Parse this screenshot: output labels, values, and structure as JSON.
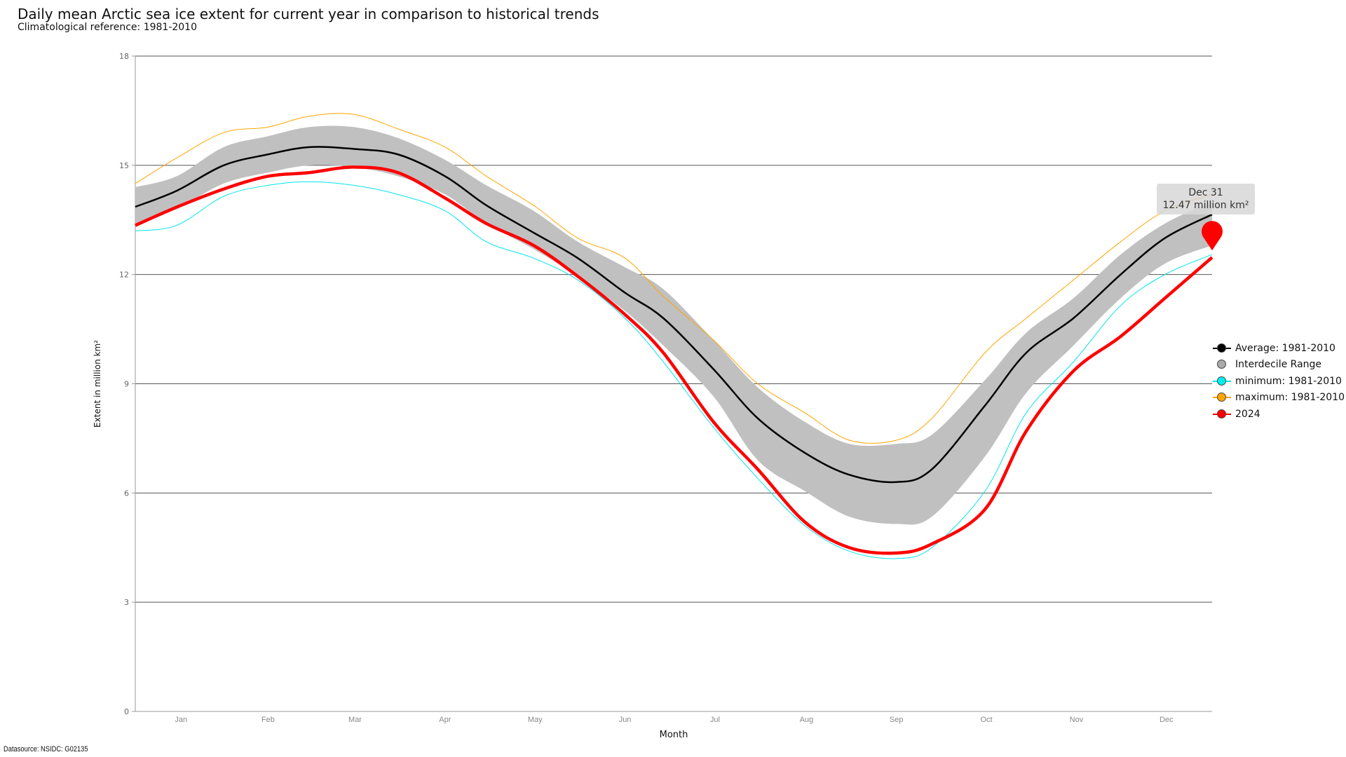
{
  "chart_data": {
    "type": "line",
    "title": "Daily mean Arctic sea ice extent for current year in comparison to historical trends",
    "subtitle": "Climatological reference: 1981-2010",
    "xlabel": "Month",
    "ylabel": "Extent in million km²",
    "xlim": [
      1,
      366
    ],
    "ylim": [
      0,
      18
    ],
    "yticks": [
      0,
      3,
      6,
      9,
      12,
      15,
      18
    ],
    "xtick_labels": [
      "Jan",
      "Feb",
      "Mar",
      "Apr",
      "May",
      "Jun",
      "Jul",
      "Aug",
      "Sep",
      "Oct",
      "Nov",
      "Dec"
    ],
    "grid": "horizontal",
    "legend_position": "right",
    "x_day_of_year": [
      1,
      15,
      31,
      46,
      60,
      75,
      90,
      106,
      120,
      136,
      151,
      167,
      180,
      197,
      212,
      228,
      243,
      259,
      271,
      289,
      303,
      319,
      335,
      350,
      366
    ],
    "series": [
      {
        "name": "Average: 1981-2010",
        "color": "#000000",
        "values": [
          13.86,
          14.3,
          15.0,
          15.3,
          15.5,
          15.45,
          15.3,
          14.7,
          13.9,
          13.15,
          12.45,
          11.5,
          10.8,
          9.4,
          8.05,
          7.1,
          6.5,
          6.3,
          6.65,
          8.4,
          9.85,
          10.8,
          12.0,
          13.0,
          13.65
        ]
      },
      {
        "name": "minimum: 1981-2010",
        "color": "#00e5ee",
        "values": [
          13.2,
          13.35,
          14.15,
          14.45,
          14.55,
          14.45,
          14.2,
          13.75,
          12.9,
          12.45,
          11.85,
          10.8,
          9.6,
          7.8,
          6.4,
          5.1,
          4.4,
          4.2,
          4.5,
          6.05,
          8.2,
          9.6,
          11.15,
          12.0,
          12.55
        ]
      },
      {
        "name": "maximum: 1981-2010",
        "color": "#ffa500",
        "values": [
          14.5,
          15.2,
          15.9,
          16.05,
          16.35,
          16.4,
          16.0,
          15.5,
          14.7,
          13.9,
          13.0,
          12.45,
          11.4,
          10.2,
          9.0,
          8.2,
          7.45,
          7.45,
          8.05,
          9.85,
          10.8,
          11.85,
          12.9,
          13.75,
          14.2
        ]
      },
      {
        "name": "2024",
        "color": "#ff0000",
        "values": [
          13.35,
          13.85,
          14.35,
          14.7,
          14.8,
          14.95,
          14.8,
          14.1,
          13.4,
          12.8,
          11.95,
          10.9,
          9.85,
          7.95,
          6.65,
          5.2,
          4.5,
          4.35,
          4.6,
          5.55,
          7.7,
          9.35,
          10.3,
          11.35,
          12.47
        ]
      }
    ],
    "interdecile_range": {
      "name": "Interdecile Range",
      "color": "#c0c0c0",
      "upper": [
        14.4,
        14.7,
        15.5,
        15.8,
        16.05,
        16.05,
        15.75,
        15.15,
        14.45,
        13.75,
        12.9,
        12.2,
        11.6,
        10.2,
        8.9,
        7.95,
        7.35,
        7.35,
        7.6,
        9.1,
        10.4,
        11.35,
        12.55,
        13.4,
        14.0
      ],
      "lower": [
        13.35,
        13.8,
        14.5,
        14.8,
        15.0,
        14.95,
        14.7,
        14.2,
        13.4,
        12.7,
        11.95,
        11.0,
        10.05,
        8.65,
        6.9,
        6.05,
        5.35,
        5.15,
        5.35,
        7.0,
        8.75,
        10.05,
        11.35,
        12.3,
        12.8
      ]
    },
    "tooltip": {
      "date": "Dec 31",
      "value": "12.47 million km²"
    }
  },
  "datasource": "Datasource: NSIDC: G02135"
}
